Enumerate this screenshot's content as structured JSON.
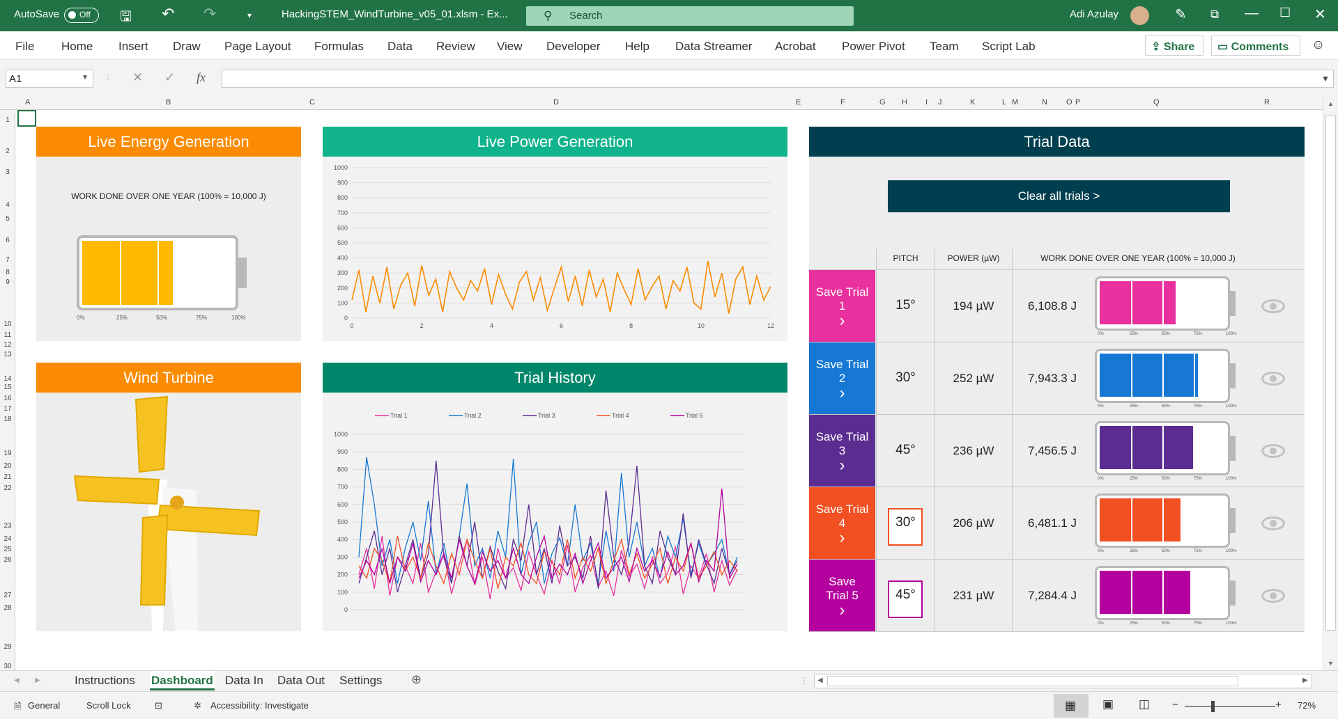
{
  "titlebar": {
    "autosave_label": "AutoSave",
    "autosave_state": "Off",
    "filename": "HackingSTEM_WindTurbine_v05_01.xlsm  -  Ex...",
    "search_placeholder": "Search",
    "user_name": "Adi Azulay"
  },
  "menu": [
    "File",
    "Home",
    "Insert",
    "Draw",
    "Page Layout",
    "Formulas",
    "Data",
    "Review",
    "View",
    "Developer",
    "Help",
    "Data Streamer",
    "Acrobat",
    "Power Pivot",
    "Team",
    "Script Lab"
  ],
  "share_label": "Share",
  "comments_label": "Comments",
  "formula": {
    "name_box": "A1",
    "cancel": "✕",
    "enter": "✓",
    "fx": "fx",
    "value": ""
  },
  "columns": [
    "A",
    "B",
    "C",
    "D",
    "E",
    "F",
    "G",
    "H",
    "I",
    "J",
    "K",
    "L",
    "M",
    "N",
    "O",
    "P",
    "Q",
    "R"
  ],
  "rows": [
    "1",
    "2",
    "3",
    "4",
    "5",
    "6",
    "7",
    "8",
    "9",
    "10",
    "11",
    "12",
    "13",
    "14",
    "15",
    "16",
    "17",
    "18",
    "19",
    "20",
    "21",
    "22",
    "23",
    "24",
    "25",
    "26",
    "27",
    "28",
    "29",
    "30"
  ],
  "energy": {
    "title": "Live Energy Generation",
    "subtitle": "WORK DONE OVER ONE YEAR (100% = 10,000 J)",
    "level": 0.6,
    "ticks": [
      "0%",
      "25%",
      "50%",
      "75%",
      "100%"
    ]
  },
  "turbine": {
    "title": "Wind Turbine"
  },
  "power": {
    "title": "Live Power Generation"
  },
  "history": {
    "title": "Trial History"
  },
  "trials": {
    "title": "Trial Data",
    "clear_label": "Clear all trials >",
    "col_pitch": "PITCH",
    "col_power": "POWER (µW)",
    "col_work": "WORK DONE OVER ONE YEAR (100% = 10,000 J)",
    "rows": [
      {
        "save_line1": "Save Trial",
        "save_line2": "1",
        "pitch": "15°",
        "power": "194 µW",
        "work": "6,108.8 J",
        "level": 0.61,
        "color": "#e8319e",
        "boxed": false
      },
      {
        "save_line1": "Save Trial",
        "save_line2": "2",
        "pitch": "30°",
        "power": "252 µW",
        "work": "7,943.3 J",
        "level": 0.79,
        "color": "#1678d4",
        "boxed": false
      },
      {
        "save_line1": "Save Trial",
        "save_line2": "3",
        "pitch": "45°",
        "power": "236 µW",
        "work": "7,456.5 J",
        "level": 0.75,
        "color": "#5c2d91",
        "boxed": false
      },
      {
        "save_line1": "Save Trial",
        "save_line2": "4",
        "pitch": "30°",
        "power": "206 µW",
        "work": "6,481.1 J",
        "level": 0.65,
        "color": "#f25022",
        "boxed": true
      },
      {
        "save_line1": "Save",
        "save_line2": "Trial 5",
        "pitch": "45°",
        "power": "231 µW",
        "work": "7,284.4 J",
        "level": 0.73,
        "color": "#b4009e",
        "boxed": true
      }
    ]
  },
  "sheet_tabs": [
    "Instructions",
    "Dashboard",
    "Data In",
    "Data Out",
    "Settings"
  ],
  "status": {
    "mode": "General",
    "scroll_lock": "Scroll Lock",
    "accessibility": "Accessibility: Investigate",
    "zoom": "72%"
  },
  "chart_data": [
    {
      "type": "line",
      "x": [
        0,
        0.2,
        0.4,
        0.6,
        0.8,
        1,
        1.2,
        1.4,
        1.6,
        1.8,
        2,
        2.2,
        2.4,
        2.6,
        2.8,
        3,
        3.2,
        3.4,
        3.6,
        3.8,
        4,
        4.2,
        4.4,
        4.6,
        4.8,
        5,
        5.2,
        5.4,
        5.6,
        5.8,
        6,
        6.2,
        6.4,
        6.6,
        6.8,
        7,
        7.2,
        7.4,
        7.6,
        7.8,
        8,
        8.2,
        8.4,
        8.6,
        8.8,
        9,
        9.2,
        9.4,
        9.6,
        9.8,
        10,
        10.2,
        10.4,
        10.6,
        10.8,
        11,
        11.2,
        11.4,
        11.6,
        11.8,
        12
      ],
      "series": [
        {
          "name": "",
          "values": [
            120,
            320,
            40,
            280,
            100,
            340,
            60,
            220,
            300,
            80,
            350,
            150,
            260,
            40,
            310,
            200,
            120,
            250,
            180,
            330,
            90,
            290,
            160,
            60,
            240,
            310,
            120,
            270,
            50,
            200,
            340,
            110,
            280,
            80,
            320,
            140,
            260,
            40,
            300,
            190,
            90,
            330,
            120,
            210,
            280,
            60,
            250,
            180,
            340,
            100,
            60,
            380,
            140,
            300,
            30,
            260,
            340,
            90,
            280,
            120,
            210
          ]
        }
      ],
      "ylim": [
        0,
        1000
      ],
      "xlim": [
        0,
        12
      ],
      "yticks": [
        "0",
        "100",
        "200",
        "300",
        "400",
        "500",
        "600",
        "700",
        "800",
        "900",
        "1000"
      ],
      "xticks": [
        "0",
        "2",
        "4",
        "6",
        "8",
        "10",
        "12"
      ]
    },
    {
      "type": "line",
      "legend": "top",
      "ylim": [
        0,
        1000
      ],
      "yticks": [
        "0",
        "100",
        "200",
        "300",
        "400",
        "500",
        "600",
        "700",
        "800",
        "900",
        "1000"
      ],
      "series": [
        {
          "name": "Trial 1",
          "color": "#e8319e",
          "values": [
            200,
            350,
            120,
            420,
            80,
            300,
            250,
            150,
            380,
            100,
            220,
            320,
            90,
            260,
            400,
            140,
            300,
            60,
            350,
            180,
            240,
            110,
            330,
            200,
            90,
            280,
            150,
            370,
            100,
            240,
            310,
            130,
            220,
            80,
            340,
            190,
            260,
            120,
            300,
            150,
            210,
            360,
            90,
            250,
            180,
            320,
            100,
            280,
            140,
            230
          ]
        },
        {
          "name": "Trial 2",
          "color": "#1678d4",
          "values": [
            300,
            870,
            600,
            250,
            400,
            150,
            350,
            500,
            280,
            620,
            200,
            380,
            150,
            420,
            720,
            250,
            350,
            180,
            450,
            300,
            860,
            200,
            380,
            500,
            150,
            320,
            410,
            250,
            600,
            280,
            380,
            150,
            450,
            220,
            780,
            300,
            500,
            250,
            350,
            180,
            420,
            300,
            520,
            200,
            380,
            250,
            320,
            400,
            200,
            300
          ]
        },
        {
          "name": "Trial 3",
          "color": "#5c2d91",
          "values": [
            150,
            300,
            450,
            200,
            350,
            100,
            250,
            400,
            180,
            320,
            850,
            300,
            150,
            420,
            250,
            500,
            180,
            360,
            220,
            120,
            400,
            280,
            600,
            200,
            350,
            150,
            480,
            250,
            300,
            180,
            420,
            120,
            680,
            300,
            200,
            380,
            820,
            250,
            150,
            450,
            300,
            200,
            550,
            180,
            400,
            260,
            150,
            350,
            200,
            280
          ]
        },
        {
          "name": "Trial 4",
          "color": "#f25022",
          "values": [
            250,
            180,
            350,
            280,
            150,
            420,
            220,
            300,
            180,
            380,
            250,
            150,
            320,
            200,
            400,
            280,
            180,
            350,
            120,
            300,
            250,
            380,
            200,
            150,
            330,
            270,
            200,
            400,
            180,
            300,
            220,
            350,
            150,
            280,
            400,
            200,
            320,
            180,
            260,
            350,
            150,
            300,
            220,
            380,
            180,
            250,
            330,
            200,
            280,
            220
          ]
        },
        {
          "name": "Trial 5",
          "color": "#b4009e",
          "values": [
            180,
            280,
            200,
            350,
            150,
            300,
            220,
            380,
            160,
            280,
            200,
            320,
            180,
            400,
            250,
            150,
            330,
            220,
            280,
            180,
            350,
            200,
            150,
            300,
            420,
            180,
            260,
            200,
            320,
            150,
            280,
            380,
            180,
            240,
            300,
            160,
            350,
            220,
            280,
            190,
            330,
            200,
            250,
            380,
            160,
            280,
            220,
            690,
            180,
            260
          ]
        }
      ]
    }
  ]
}
